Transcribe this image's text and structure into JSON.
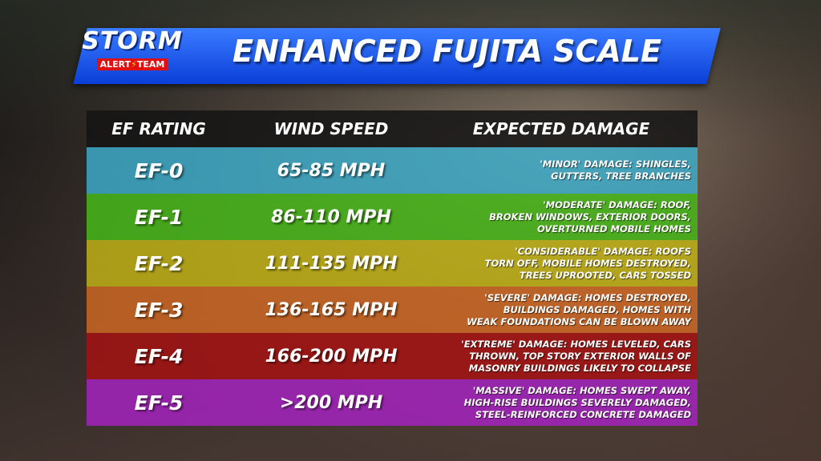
{
  "header": {
    "logo": {
      "top": "STORM",
      "left": "ALERT",
      "right": "TEAM"
    },
    "title": "ENHANCED FUJITA SCALE"
  },
  "table": {
    "columns": [
      "EF RATING",
      "WIND SPEED",
      "EXPECTED DAMAGE"
    ],
    "rows": [
      [
        "EF-0",
        "65-85 MPH",
        [
          "'MINOR' DAMAGE: SHINGLES,",
          "GUTTERS, TREE BRANCHES"
        ]
      ],
      [
        "EF-1",
        "86-110 MPH",
        [
          "'MODERATE' DAMAGE: ROOF,",
          "BROKEN WINDOWS, EXTERIOR DOORS,",
          "OVERTURNED MOBILE HOMES"
        ]
      ],
      [
        "EF-2",
        "111-135 MPH",
        [
          "'CONSIDERABLE' DAMAGE: ROOFS",
          "TORN OFF, MOBILE HOMES DESTROYED,",
          "TREES UPROOTED, CARS TOSSED"
        ]
      ],
      [
        "EF-3",
        "136-165 MPH",
        [
          "'SEVERE' DAMAGE: HOMES DESTROYED,",
          "BUILDINGS DAMAGED, HOMES WITH",
          "WEAK FOUNDATIONS CAN BE BLOWN AWAY"
        ]
      ],
      [
        "EF-4",
        "166-200 MPH",
        [
          "'EXTREME' DAMAGE: HOMES LEVELED, CARS",
          "THROWN, TOP STORY EXTERIOR WALLS OF",
          "MASONRY BUILDINGS LIKELY TO COLLAPSE"
        ]
      ],
      [
        "EF-5",
        ">200 MPH",
        [
          "'MASSIVE' DAMAGE: HOMES SWEPT AWAY,",
          "HIGH-RISE BUILDINGS SEVERELY DAMAGED,",
          "STEEL-REINFORCED CONCRETE DAMAGED"
        ]
      ]
    ]
  }
}
